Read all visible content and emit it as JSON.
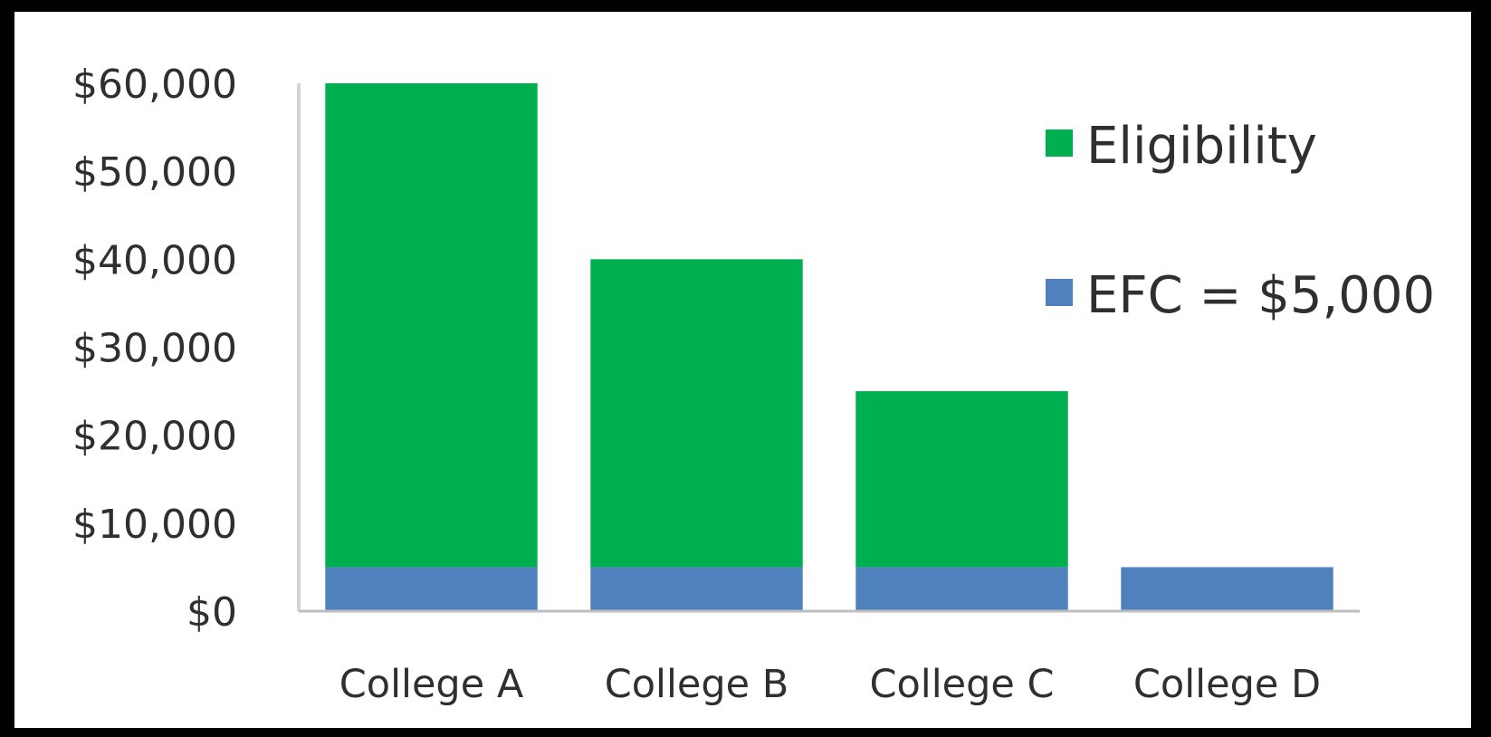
{
  "chart_data": {
    "type": "bar",
    "stacked": true,
    "categories": [
      "College A",
      "College B",
      "College C",
      "College D"
    ],
    "series": [
      {
        "name": "EFC = $5,000",
        "values": [
          5000,
          5000,
          5000,
          5000
        ],
        "color": "#4f81bd"
      },
      {
        "name": "Eligibility",
        "values": [
          55000,
          35000,
          20000,
          0
        ],
        "color": "#00b050"
      }
    ],
    "y_ticks": [
      "$0",
      "$10,000",
      "$20,000",
      "$30,000",
      "$40,000",
      "$50,000",
      "$60,000"
    ],
    "ylim": [
      0,
      60000
    ],
    "legend": {
      "position": "right",
      "entries": [
        "Eligibility",
        "EFC = $5,000"
      ]
    },
    "grid": false,
    "title": "",
    "xlabel": "",
    "ylabel": ""
  }
}
